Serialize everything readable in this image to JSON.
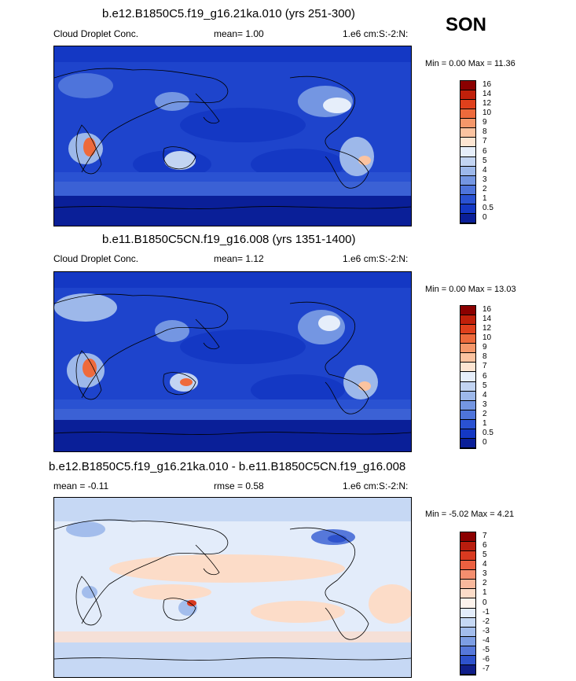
{
  "season": "SON",
  "panels": [
    {
      "title": "b.e12.B1850C5.f19_g16.21ka.010 (yrs 251-300)",
      "left_label": "Cloud Droplet Conc.",
      "center_label": "mean=   1.00",
      "right_label": "1.e6 cm:S:-2:N:",
      "minmax": "Min =    0.00 Max =   11.36",
      "colorbar_labels": [
        "16",
        "14",
        "12",
        "10",
        "9",
        "8",
        "7",
        "6",
        "5",
        "4",
        "3",
        "2",
        "1",
        "0.5",
        "0"
      ],
      "colorbar_colors": [
        "#8b0000",
        "#c0200a",
        "#e0401c",
        "#ee6a3c",
        "#f5976a",
        "#fbc3a0",
        "#fde5d2",
        "#e6eefa",
        "#c2d4f2",
        "#9db8ea",
        "#7496e2",
        "#4e74db",
        "#2a52d2",
        "#1438c4",
        "#0a1f98"
      ],
      "style": "abs"
    },
    {
      "title": "b.e11.B1850C5CN.f19_g16.008 (yrs 1351-1400)",
      "left_label": "Cloud Droplet Conc.",
      "center_label": "mean=   1.12",
      "right_label": "1.e6 cm:S:-2:N:",
      "minmax": "Min =    0.00 Max =   13.03",
      "colorbar_labels": [
        "16",
        "14",
        "12",
        "10",
        "9",
        "8",
        "7",
        "6",
        "5",
        "4",
        "3",
        "2",
        "1",
        "0.5",
        "0"
      ],
      "colorbar_colors": [
        "#8b0000",
        "#c0200a",
        "#e0401c",
        "#ee6a3c",
        "#f5976a",
        "#fbc3a0",
        "#fde5d2",
        "#e6eefa",
        "#c2d4f2",
        "#9db8ea",
        "#7496e2",
        "#4e74db",
        "#2a52d2",
        "#1438c4",
        "#0a1f98"
      ],
      "style": "abs"
    },
    {
      "title": "b.e12.B1850C5.f19_g16.21ka.010 - b.e11.B1850C5CN.f19_g16.008",
      "left_label": "mean =  -0.11",
      "center_label": "rmse =   0.58",
      "right_label": "1.e6 cm:S:-2:N:",
      "minmax": "Min =   -5.02 Max =    4.21",
      "colorbar_labels": [
        "7",
        "6",
        "5",
        "4",
        "3",
        "2",
        "1",
        "0",
        "-1",
        "-2",
        "-3",
        "-4",
        "-5",
        "-6",
        "-7"
      ],
      "colorbar_colors": [
        "#8b0000",
        "#b81d0e",
        "#d93a20",
        "#ec6040",
        "#f48e6e",
        "#f9b89c",
        "#fcdcc8",
        "#fdf3ec",
        "#e3ecfa",
        "#c6d8f4",
        "#a3bdec",
        "#7d9ee4",
        "#5678da",
        "#2e52cc",
        "#101f8a"
      ],
      "style": "diff"
    }
  ]
}
